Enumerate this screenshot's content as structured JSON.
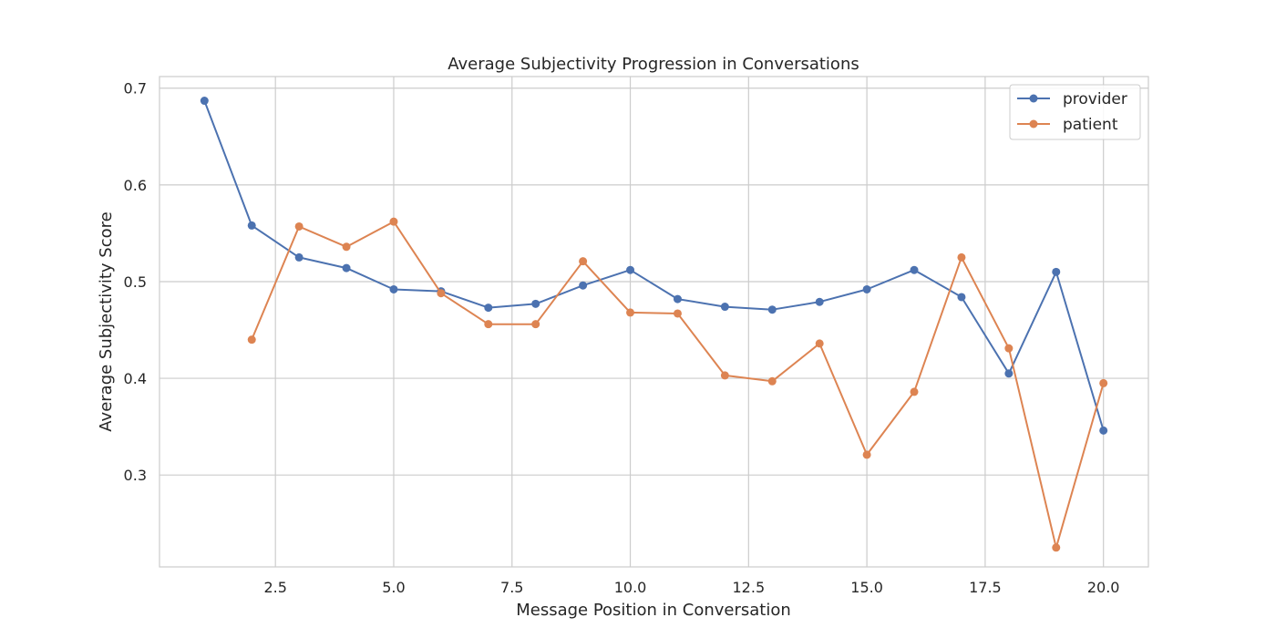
{
  "chart_data": {
    "type": "line",
    "title": "Average Subjectivity Progression in Conversations",
    "xlabel": "Message Position in Conversation",
    "ylabel": "Average Subjectivity Score",
    "xlim": [
      0.05,
      20.95
    ],
    "ylim": [
      0.205,
      0.712
    ],
    "xticks": [
      2.5,
      5.0,
      7.5,
      10.0,
      12.5,
      15.0,
      17.5,
      20.0
    ],
    "xtick_labels": [
      "2.5",
      "5.0",
      "7.5",
      "10.0",
      "12.5",
      "15.0",
      "17.5",
      "20.0"
    ],
    "yticks": [
      0.3,
      0.4,
      0.5,
      0.6,
      0.7
    ],
    "ytick_labels": [
      "0.3",
      "0.4",
      "0.5",
      "0.6",
      "0.7"
    ],
    "grid": true,
    "legend_position": "top-right",
    "series": [
      {
        "name": "provider",
        "color": "#4c72b0",
        "x": [
          1,
          2,
          3,
          4,
          5,
          6,
          7,
          8,
          9,
          10,
          11,
          12,
          13,
          14,
          15,
          16,
          17,
          18,
          19,
          20
        ],
        "y": [
          0.687,
          0.558,
          0.525,
          0.514,
          0.492,
          0.49,
          0.473,
          0.477,
          0.496,
          0.512,
          0.482,
          0.474,
          0.471,
          0.479,
          0.492,
          0.512,
          0.484,
          0.405,
          0.51,
          0.346
        ]
      },
      {
        "name": "patient",
        "color": "#dd8452",
        "x": [
          2,
          3,
          4,
          5,
          6,
          7,
          8,
          9,
          10,
          11,
          12,
          13,
          14,
          15,
          16,
          17,
          18,
          19,
          20
        ],
        "y": [
          0.44,
          0.557,
          0.536,
          0.562,
          0.488,
          0.456,
          0.456,
          0.521,
          0.468,
          0.467,
          0.403,
          0.397,
          0.436,
          0.321,
          0.386,
          0.525,
          0.431,
          0.225,
          0.395
        ]
      }
    ]
  }
}
